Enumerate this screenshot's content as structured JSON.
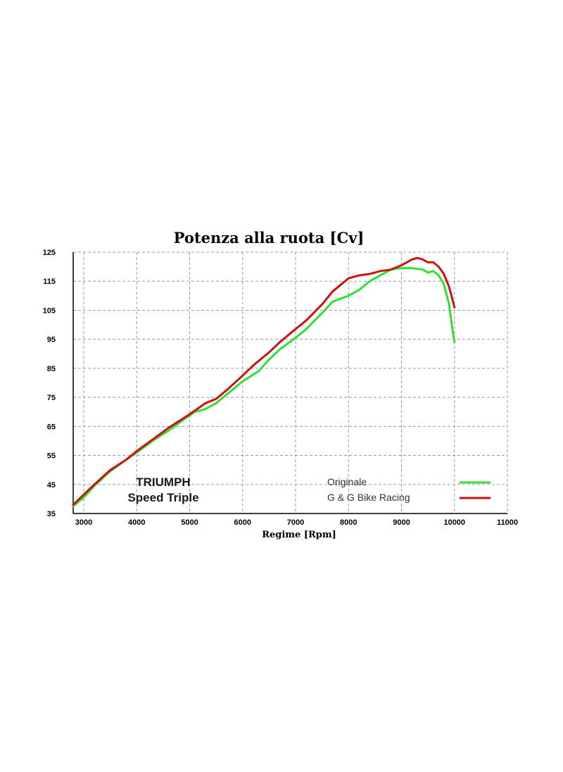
{
  "chart_data": {
    "type": "line",
    "title": "Potenza alla ruota  [Cv]",
    "xlabel": "Regime [Rpm]",
    "ylabel": "",
    "xlim": [
      2800,
      11000
    ],
    "ylim": [
      35,
      125
    ],
    "xticks": [
      3000,
      4000,
      5000,
      6000,
      7000,
      8000,
      9000,
      10000,
      11000
    ],
    "yticks": [
      35,
      45,
      55,
      65,
      75,
      85,
      95,
      105,
      115,
      125
    ],
    "grid": true,
    "legend_position": "right, inside plot",
    "annotation": [
      "TRIUMPH",
      "Speed Triple"
    ],
    "series": [
      {
        "name": "Originale",
        "color": "#33dd33",
        "x": [
          2800,
          3000,
          3200,
          3500,
          3800,
          4000,
          4300,
          4600,
          4900,
          5100,
          5300,
          5500,
          5700,
          6000,
          6300,
          6500,
          6700,
          7000,
          7200,
          7500,
          7700,
          8000,
          8200,
          8400,
          8600,
          8800,
          9000,
          9200,
          9400,
          9500,
          9600,
          9700,
          9800,
          9900,
          9950,
          10000
        ],
        "y": [
          37.5,
          40.5,
          44.5,
          49.5,
          53.5,
          56,
          60,
          63.5,
          67.5,
          70,
          71,
          73,
          76,
          80.5,
          84,
          88,
          91.5,
          95.5,
          98.5,
          104,
          108,
          110,
          112,
          115,
          117,
          119,
          119.5,
          119.5,
          119,
          118,
          118.5,
          117,
          114,
          107,
          100,
          94
        ]
      },
      {
        "name": "G & G Bike Racing",
        "color": "#cc1111",
        "x": [
          2800,
          3000,
          3200,
          3500,
          3800,
          4000,
          4300,
          4600,
          4900,
          5100,
          5300,
          5500,
          5700,
          6000,
          6200,
          6500,
          6700,
          7000,
          7200,
          7500,
          7700,
          7900,
          8000,
          8200,
          8400,
          8600,
          8800,
          9000,
          9200,
          9300,
          9400,
          9500,
          9600,
          9700,
          9800,
          9900,
          10000
        ],
        "y": [
          38,
          41.5,
          45,
          50,
          53.5,
          56.5,
          60.5,
          64.5,
          68,
          70.5,
          73,
          74.5,
          77.5,
          82.5,
          86,
          90.5,
          94,
          98.5,
          101.5,
          107,
          111.5,
          114.5,
          116,
          117,
          117.5,
          118.5,
          119,
          120.5,
          122.5,
          123,
          122.5,
          121.5,
          121.5,
          120,
          117.5,
          113,
          106
        ]
      }
    ]
  }
}
